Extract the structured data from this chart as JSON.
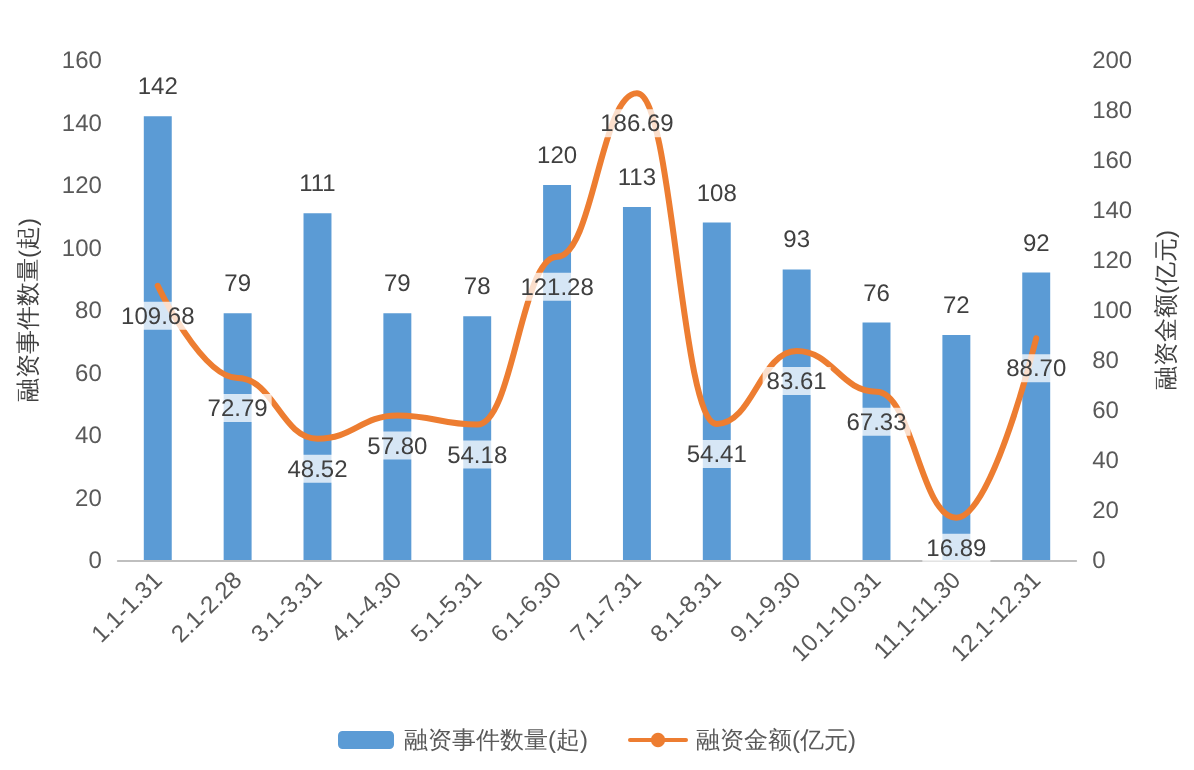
{
  "chart_data": {
    "type": "bar",
    "ylabel": "融资事件数量(起)",
    "y2label": "融资金额(亿元)",
    "categories": [
      "1.1-1.31",
      "2.1-2.28",
      "3.1-3.31",
      "4.1-4.30",
      "5.1-5.31",
      "6.1-6.30",
      "7.1-7.31",
      "8.1-8.31",
      "9.1-9.30",
      "10.1-10.31",
      "11.1-11.30",
      "12.1-12.31"
    ],
    "series": [
      {
        "name": "融资事件数量(起)",
        "color": "#5b9bd5",
        "values": [
          142,
          79,
          111,
          79,
          78,
          120,
          113,
          108,
          93,
          76,
          72,
          92
        ],
        "value_labels": [
          "142",
          "79",
          "111",
          "79",
          "78",
          "120",
          "113",
          "108",
          "93",
          "76",
          "72",
          "92"
        ]
      },
      {
        "name": "融资金额(亿元)",
        "type": "line",
        "axis": "y2",
        "color": "#ed7d31",
        "values": [
          109.68,
          72.79,
          48.52,
          57.8,
          54.18,
          121.28,
          186.69,
          54.41,
          83.61,
          67.33,
          16.89,
          88.7
        ],
        "value_labels": [
          "109.68",
          "72.79",
          "48.52",
          "57.80",
          "54.18",
          "121.28",
          "186.69",
          "54.41",
          "83.61",
          "67.33",
          "16.89",
          "88.70"
        ]
      }
    ],
    "ylim": [
      0,
      160
    ],
    "yticks": [
      0,
      20,
      40,
      60,
      80,
      100,
      120,
      140,
      160
    ],
    "y2lim": [
      0,
      200
    ],
    "y2ticks": [
      0,
      20,
      40,
      60,
      80,
      100,
      120,
      140,
      160,
      180,
      200
    ],
    "grid": false,
    "legend": "bottom",
    "marker": "none",
    "line_style": "solid"
  }
}
